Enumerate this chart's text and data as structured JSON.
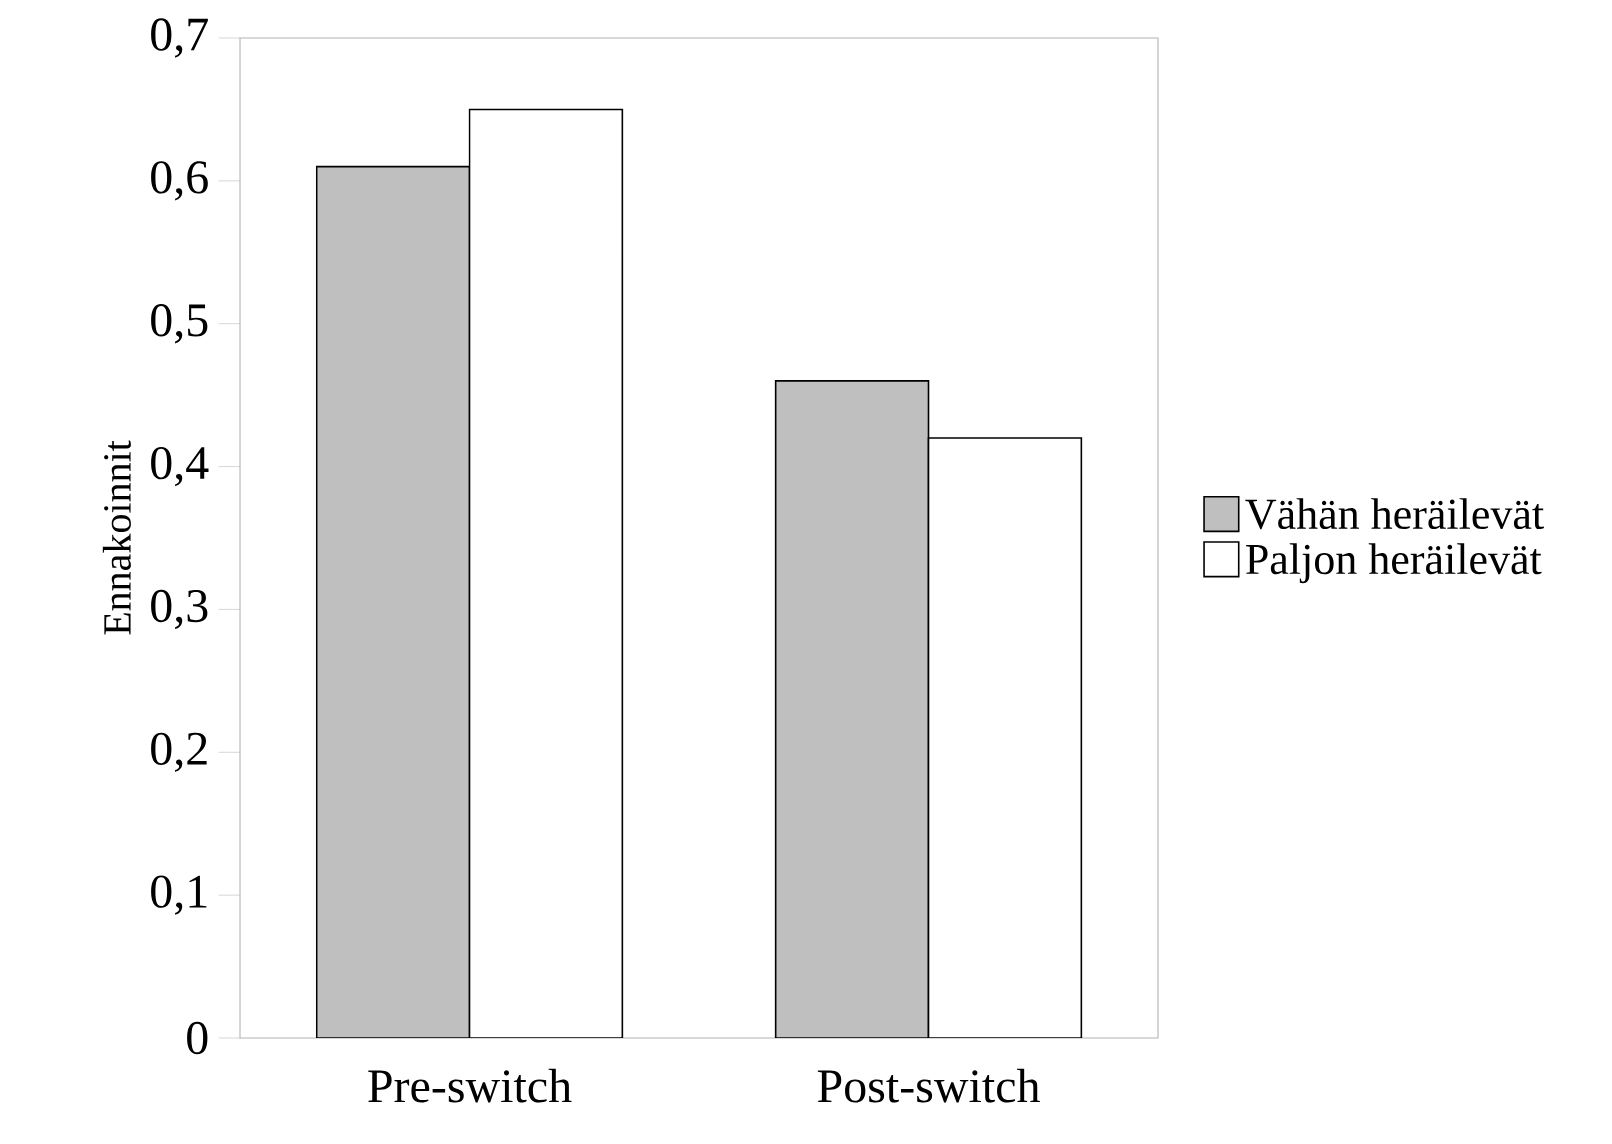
{
  "chart_data": {
    "type": "bar",
    "ylabel": "Ennakoinnit",
    "categories": [
      "Pre-switch",
      "Post-switch"
    ],
    "series": [
      {
        "name": "Vähän heräilevät",
        "color": "#bfbfbf",
        "values": [
          0.61,
          0.46
        ]
      },
      {
        "name": "Paljon heräilevät",
        "color": "#ffffff",
        "values": [
          0.65,
          0.42
        ]
      }
    ],
    "ylim": [
      0,
      0.7
    ],
    "yticks": [
      {
        "value": 0,
        "label": "0"
      },
      {
        "value": 0.1,
        "label": "0,1"
      },
      {
        "value": 0.2,
        "label": "0,2"
      },
      {
        "value": 0.3,
        "label": "0,3"
      },
      {
        "value": 0.4,
        "label": "0,4"
      },
      {
        "value": 0.5,
        "label": "0,5"
      },
      {
        "value": 0.6,
        "label": "0,6"
      },
      {
        "value": 0.7,
        "label": "0,7"
      }
    ],
    "legend": "right",
    "grid": false
  }
}
